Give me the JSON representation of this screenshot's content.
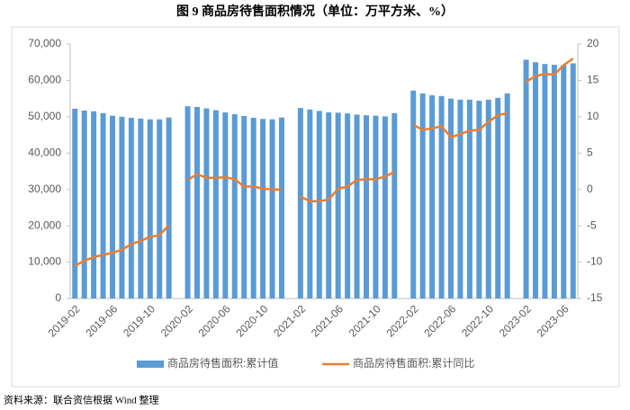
{
  "chart_data": {
    "type": "bar_line",
    "title": "图 9    商品房待售面积情况（单位：万平方米、%）",
    "source": "资料来源：联合资信根据 Wind 整理",
    "categories": [
      "2019-02",
      null,
      null,
      null,
      "2019-06",
      null,
      null,
      null,
      "2019-10",
      null,
      null,
      null,
      "2020-02",
      null,
      null,
      null,
      "2020-06",
      null,
      null,
      null,
      "2020-10",
      null,
      null,
      null,
      "2021-02",
      null,
      null,
      null,
      "2021-06",
      null,
      null,
      null,
      "2021-10",
      null,
      null,
      null,
      "2022-02",
      null,
      null,
      null,
      "2022-06",
      null,
      null,
      null,
      "2022-10",
      null,
      null,
      null,
      "2023-02",
      null,
      null,
      null,
      "2023-06",
      null
    ],
    "series": [
      {
        "name": "商品房待售面积:累计值",
        "color": "#5b9bd5",
        "kind": "bar",
        "axis": "y",
        "values": [
          52200,
          51700,
          51500,
          51000,
          50300,
          50000,
          49700,
          49500,
          49300,
          49300,
          49800,
          null,
          52900,
          52700,
          52300,
          51800,
          51200,
          50700,
          50200,
          49700,
          49400,
          49300,
          49800,
          null,
          52400,
          52000,
          51600,
          51200,
          51100,
          50900,
          50600,
          50400,
          50300,
          50100,
          51000,
          null,
          57200,
          56400,
          55900,
          55700,
          55000,
          54700,
          54700,
          54400,
          54700,
          55200,
          56400,
          null,
          65700,
          65000,
          64500,
          64300,
          64200,
          64700
        ]
      },
      {
        "name": "商品房待售面积:累计同比",
        "color": "#ed7d31",
        "kind": "line",
        "axis": "y2",
        "values": [
          -10.5,
          -9.8,
          -9.3,
          -9.0,
          -8.7,
          -8.3,
          -7.5,
          -7.1,
          -6.5,
          -6.3,
          -4.9,
          null,
          1.3,
          2.1,
          1.6,
          1.6,
          1.7,
          1.4,
          0.4,
          0.4,
          0.1,
          0.0,
          0.0,
          null,
          -1.0,
          -1.6,
          -1.6,
          -1.4,
          0.1,
          0.4,
          1.3,
          1.4,
          1.4,
          1.8,
          2.4,
          null,
          8.9,
          8.2,
          8.4,
          8.7,
          7.2,
          7.6,
          8.1,
          8.2,
          9.3,
          10.2,
          10.5,
          null,
          14.8,
          15.6,
          15.9,
          15.8,
          17.1,
          18.0
        ]
      }
    ],
    "ylim": [
      0,
      70000
    ],
    "yticks": [
      0,
      {
        "value": 10000,
        "label": "10,000"
      },
      {
        "value": 20000,
        "label": "20,000"
      },
      {
        "value": 30000,
        "label": "30,000"
      },
      {
        "value": 40000,
        "label": "40,000"
      },
      {
        "value": 50000,
        "label": "50,000"
      },
      {
        "value": 60000,
        "label": "60,000"
      },
      {
        "value": 70000,
        "label": "70,000"
      }
    ],
    "y2lim": [
      -15,
      20
    ],
    "y2ticks": [
      -15,
      -10,
      -5,
      0,
      5,
      10,
      15,
      20
    ],
    "legend": "bottom"
  }
}
